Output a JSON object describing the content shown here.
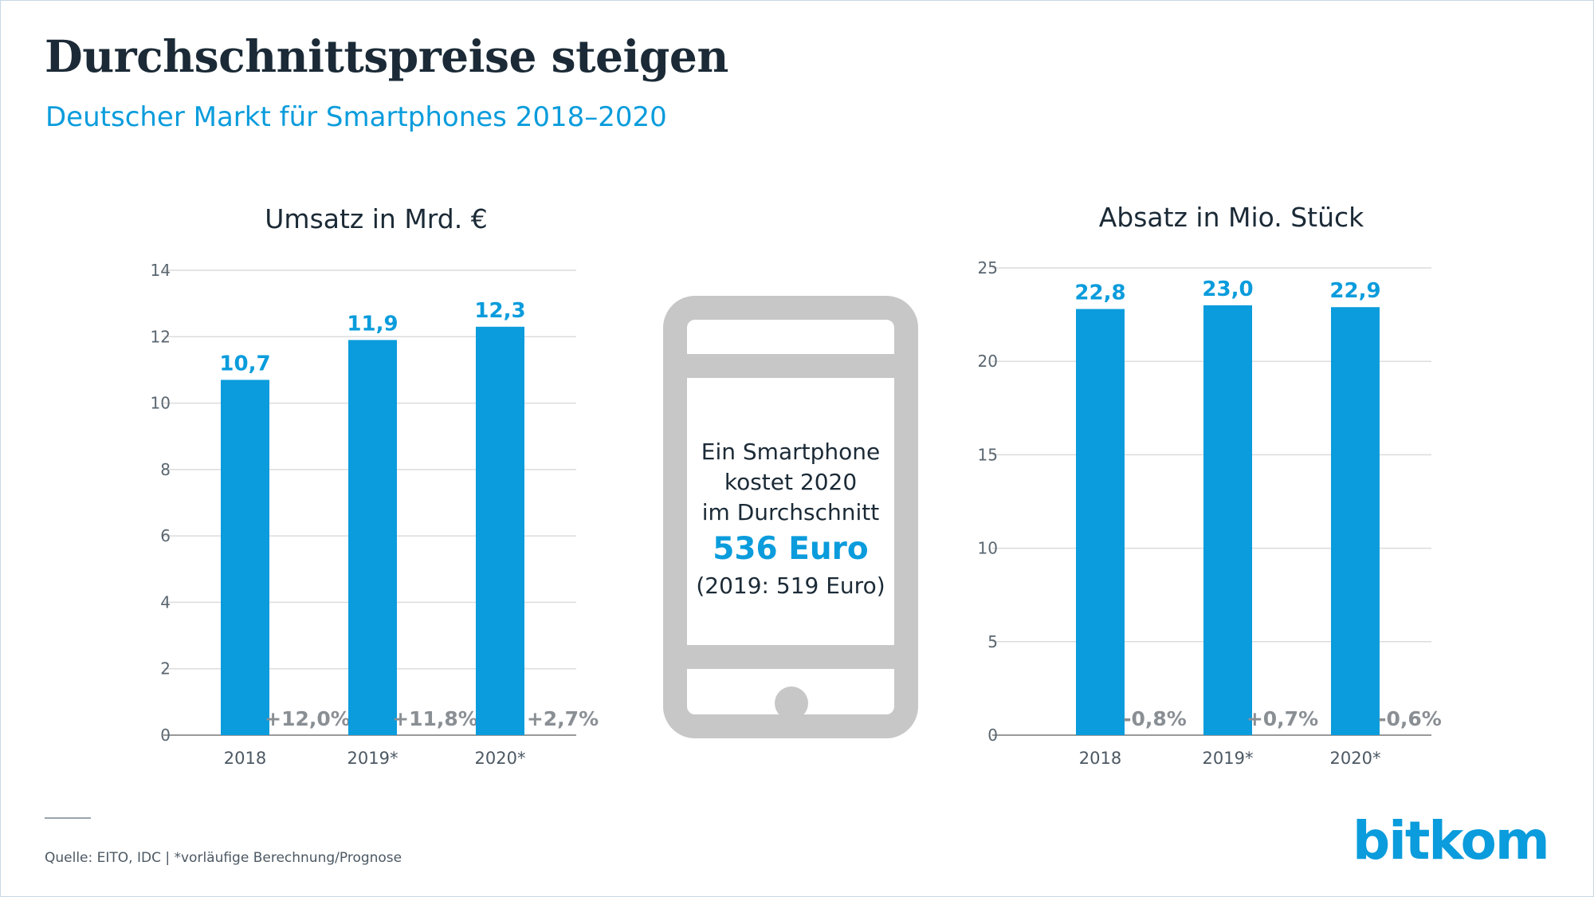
{
  "title": "Durchschnittspreise steigen",
  "subtitle": "Deutscher Markt für Smartphones 2018–2020",
  "phone": {
    "line1": "Ein Smartphone",
    "line2": "kostet 2020",
    "line3": "im Durchschnitt",
    "price": "536 Euro",
    "previous": "(2019: 519 Euro)"
  },
  "source": "Quelle: EITO, IDC | *vorläufige Berechnung/Prognose",
  "logo": "bitkom",
  "colors": {
    "bar": "#0a9cdc",
    "change": "#8a8f94",
    "grid": "#dcdcdc",
    "phone": "#c7c7c7"
  },
  "chart_data": [
    {
      "type": "bar",
      "title": "Umsatz in Mrd. €",
      "categories": [
        "2018",
        "2019*",
        "2020*"
      ],
      "values": [
        10.7,
        11.9,
        12.3
      ],
      "value_labels": [
        "10,7",
        "11,9",
        "12,3"
      ],
      "changes": [
        "+12,0%",
        "+11,8%",
        "+2,7%"
      ],
      "yticks": [
        0,
        2,
        4,
        6,
        8,
        10,
        12,
        14
      ],
      "ylim": [
        0,
        14
      ],
      "grid": true
    },
    {
      "type": "bar",
      "title": "Absatz in Mio. Stück",
      "categories": [
        "2018",
        "2019*",
        "2020*"
      ],
      "values": [
        22.8,
        23.0,
        22.9
      ],
      "value_labels": [
        "22,8",
        "23,0",
        "22,9"
      ],
      "changes": [
        "-0,8%",
        "+0,7%",
        "-0,6%"
      ],
      "yticks": [
        0,
        5,
        10,
        15,
        20,
        25
      ],
      "ylim": [
        0,
        25
      ],
      "grid": true
    }
  ]
}
